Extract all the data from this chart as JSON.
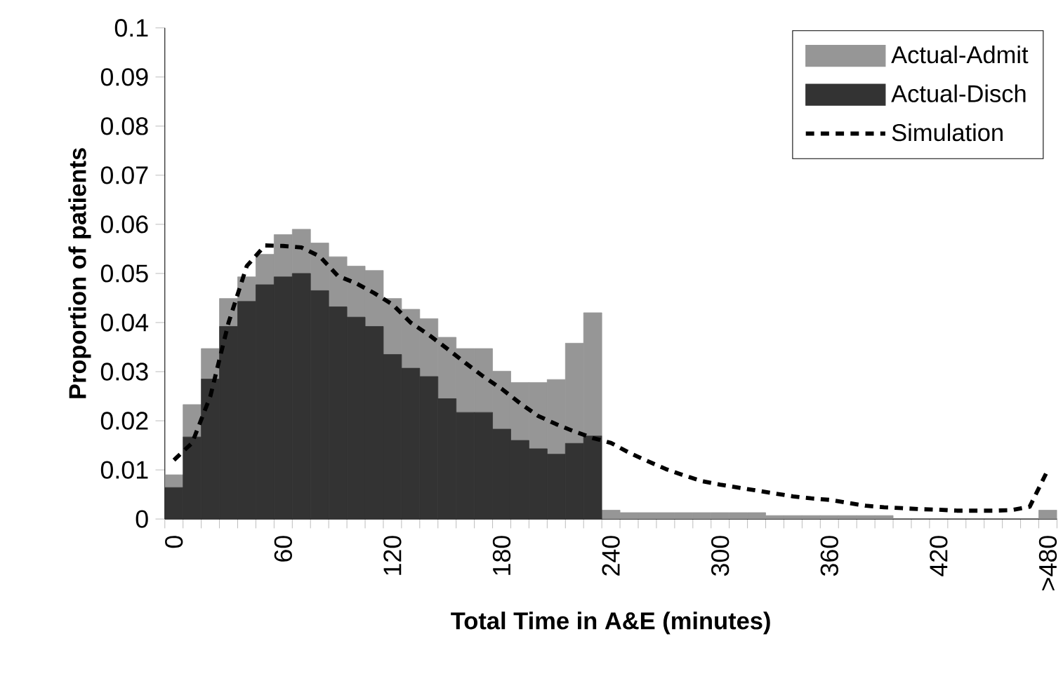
{
  "chart_data": {
    "type": "bar",
    "stacked": true,
    "xlabel": "Total Time in A&E (minutes)",
    "ylabel": "Proportion of patients",
    "categories": [
      "0",
      null,
      null,
      null,
      null,
      null,
      "60",
      null,
      null,
      null,
      null,
      null,
      "120",
      null,
      null,
      null,
      null,
      null,
      "180",
      null,
      null,
      null,
      null,
      null,
      "240",
      null,
      null,
      null,
      null,
      null,
      "300",
      null,
      null,
      null,
      null,
      null,
      "360",
      null,
      null,
      null,
      null,
      null,
      "420",
      null,
      null,
      null,
      null,
      null,
      ">480"
    ],
    "ylim": [
      0,
      0.1
    ],
    "yticks": [
      0,
      0.01,
      0.02,
      0.03,
      0.04,
      0.05,
      0.06,
      0.07,
      0.08,
      0.09,
      0.1
    ],
    "legend": "top right",
    "series": [
      {
        "name": "Actual-Disch",
        "color": "#333333",
        "values": [
          0.0064,
          0.0167,
          0.0285,
          0.0392,
          0.0443,
          0.0477,
          0.0493,
          0.05,
          0.0465,
          0.0432,
          0.0411,
          0.0392,
          0.0335,
          0.0307,
          0.029,
          0.0245,
          0.0217,
          0.0217,
          0.0183,
          0.016,
          0.0143,
          0.0132,
          0.0154,
          0.0169,
          0,
          0,
          0,
          0,
          0,
          0,
          0,
          0,
          0,
          0,
          0,
          0,
          0,
          0,
          0,
          0,
          0,
          0,
          0,
          0,
          0,
          0,
          0,
          0,
          0
        ]
      },
      {
        "name": "Actual-Admit",
        "color": "#969696",
        "values": [
          0.0026,
          0.0066,
          0.0062,
          0.0057,
          0.005,
          0.0062,
          0.0086,
          0.009,
          0.0097,
          0.0102,
          0.0104,
          0.0114,
          0.0114,
          0.012,
          0.0118,
          0.0125,
          0.013,
          0.013,
          0.0118,
          0.0118,
          0.0135,
          0.0152,
          0.0204,
          0.0251,
          0.0018,
          0.0013,
          0.0013,
          0.0013,
          0.0013,
          0.0013,
          0.0013,
          0.0013,
          0.0013,
          0.0007,
          0.0007,
          0.0007,
          0.0007,
          0.0007,
          0.0007,
          0.0007,
          0,
          0,
          0,
          0,
          0,
          0,
          0,
          0,
          0.0018
        ]
      },
      {
        "name": "Simulation",
        "color": "#000000",
        "type": "line",
        "line_style": "dashed",
        "values": [
          0.012,
          0.0155,
          0.025,
          0.04,
          0.0515,
          0.0557,
          0.0556,
          0.0553,
          0.0535,
          0.0495,
          0.048,
          0.046,
          0.0437,
          0.04,
          0.0375,
          0.0347,
          0.0318,
          0.029,
          0.0265,
          0.0236,
          0.021,
          0.0193,
          0.0178,
          0.0165,
          0.0155,
          0.0135,
          0.0118,
          0.0102,
          0.0089,
          0.0077,
          0.007,
          0.0064,
          0.0058,
          0.0052,
          0.0046,
          0.0042,
          0.0039,
          0.0033,
          0.0027,
          0.0024,
          0.0022,
          0.002,
          0.0019,
          0.0017,
          0.0017,
          0.0017,
          0.0018,
          0.0025,
          0.01
        ]
      }
    ]
  }
}
